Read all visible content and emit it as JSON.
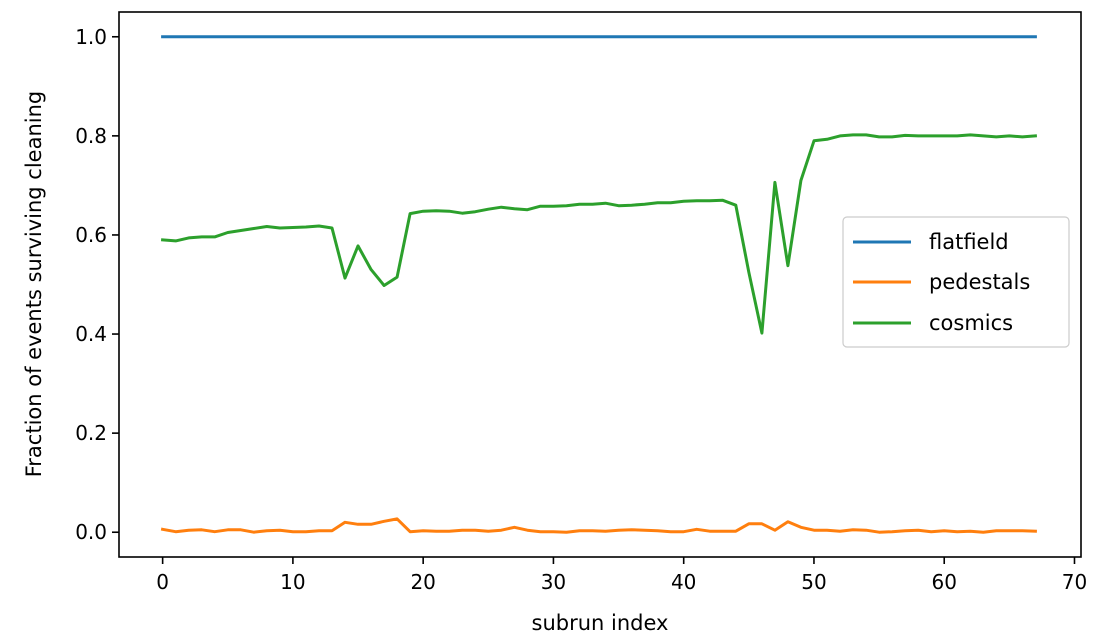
{
  "chart_data": {
    "type": "line",
    "title": "",
    "xlabel": "subrun index",
    "ylabel": "Fraction of events surviving cleaning",
    "xlim": [
      -3.35,
      70.5
    ],
    "ylim": [
      -0.05,
      1.05
    ],
    "xticks": [
      0,
      10,
      20,
      30,
      40,
      50,
      60,
      70
    ],
    "xtick_labels": [
      "0",
      "10",
      "20",
      "30",
      "40",
      "50",
      "60",
      "70"
    ],
    "yticks": [
      0.0,
      0.2,
      0.4,
      0.6,
      0.8,
      1.0
    ],
    "ytick_labels": [
      "0.0",
      "0.2",
      "0.4",
      "0.6",
      "0.8",
      "1.0"
    ],
    "grid": false,
    "legend_position": "center-right",
    "x": [
      0,
      1,
      2,
      3,
      4,
      5,
      6,
      7,
      8,
      9,
      10,
      11,
      12,
      13,
      14,
      15,
      16,
      17,
      18,
      19,
      20,
      21,
      22,
      23,
      24,
      25,
      26,
      27,
      28,
      29,
      30,
      31,
      32,
      33,
      34,
      35,
      36,
      37,
      38,
      39,
      40,
      41,
      42,
      43,
      44,
      45,
      46,
      47,
      48,
      49,
      50,
      51,
      52,
      53,
      54,
      55,
      56,
      57,
      58,
      59,
      60,
      61,
      62,
      63,
      64,
      65,
      66,
      67
    ],
    "series": [
      {
        "name": "flatfield",
        "color": "#1f77b4",
        "values": [
          1.0,
          1.0,
          1.0,
          1.0,
          1.0,
          1.0,
          1.0,
          1.0,
          1.0,
          1.0,
          1.0,
          1.0,
          1.0,
          1.0,
          1.0,
          1.0,
          1.0,
          1.0,
          1.0,
          1.0,
          1.0,
          1.0,
          1.0,
          1.0,
          1.0,
          1.0,
          1.0,
          1.0,
          1.0,
          1.0,
          1.0,
          1.0,
          1.0,
          1.0,
          1.0,
          1.0,
          1.0,
          1.0,
          1.0,
          1.0,
          1.0,
          1.0,
          1.0,
          1.0,
          1.0,
          1.0,
          1.0,
          1.0,
          1.0,
          1.0,
          1.0,
          1.0,
          1.0,
          1.0,
          1.0,
          1.0,
          1.0,
          1.0,
          1.0,
          1.0,
          1.0,
          1.0,
          1.0,
          1.0,
          1.0,
          1.0,
          1.0,
          1.0
        ]
      },
      {
        "name": "pedestals",
        "color": "#ff7f0e",
        "values": [
          0.006,
          0.001,
          0.004,
          0.005,
          0.001,
          0.005,
          0.005,
          0.0,
          0.003,
          0.004,
          0.001,
          0.001,
          0.003,
          0.003,
          0.02,
          0.016,
          0.016,
          0.022,
          0.027,
          0.001,
          0.003,
          0.002,
          0.002,
          0.004,
          0.004,
          0.002,
          0.004,
          0.01,
          0.004,
          0.001,
          0.001,
          0.0,
          0.003,
          0.003,
          0.002,
          0.004,
          0.005,
          0.004,
          0.003,
          0.001,
          0.001,
          0.006,
          0.002,
          0.002,
          0.002,
          0.017,
          0.017,
          0.004,
          0.021,
          0.01,
          0.004,
          0.004,
          0.002,
          0.005,
          0.004,
          0.0,
          0.001,
          0.003,
          0.004,
          0.001,
          0.003,
          0.001,
          0.002,
          0.0,
          0.003,
          0.003,
          0.003,
          0.002
        ]
      },
      {
        "name": "cosmics",
        "color": "#2ca02c",
        "values": [
          0.59,
          0.588,
          0.594,
          0.596,
          0.596,
          0.605,
          0.609,
          0.613,
          0.617,
          0.614,
          0.615,
          0.616,
          0.618,
          0.614,
          0.513,
          0.578,
          0.53,
          0.498,
          0.515,
          0.643,
          0.648,
          0.649,
          0.648,
          0.644,
          0.647,
          0.652,
          0.656,
          0.653,
          0.651,
          0.658,
          0.658,
          0.659,
          0.662,
          0.662,
          0.664,
          0.659,
          0.66,
          0.662,
          0.665,
          0.665,
          0.668,
          0.669,
          0.669,
          0.67,
          0.66,
          0.525,
          0.402,
          0.706,
          0.538,
          0.71,
          0.79,
          0.793,
          0.8,
          0.802,
          0.802,
          0.798,
          0.798,
          0.801,
          0.8,
          0.8,
          0.8,
          0.8,
          0.802,
          0.8,
          0.798,
          0.8,
          0.798,
          0.8
        ]
      }
    ]
  }
}
